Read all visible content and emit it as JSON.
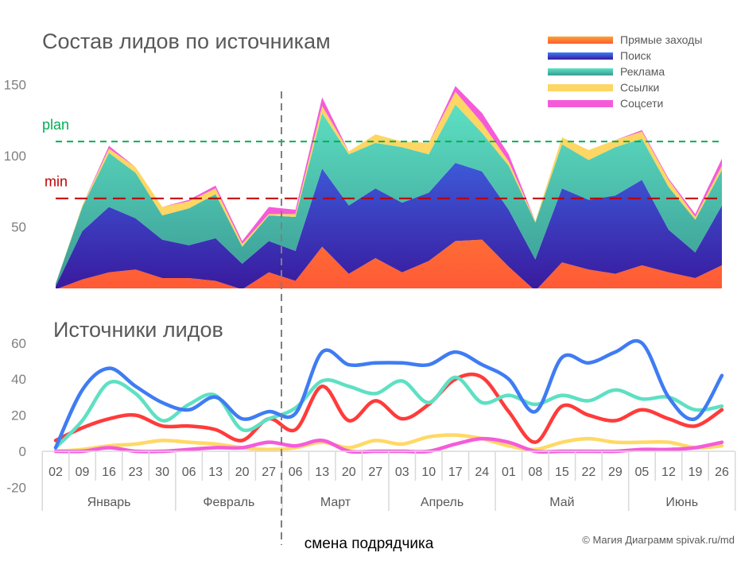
{
  "chart_data": [
    {
      "type": "area",
      "stacked": true,
      "title": "Состав лидов по источникам",
      "yticks": [
        50,
        100,
        150
      ],
      "ylim": [
        7,
        160
      ],
      "legend_position": "top-right",
      "reference_lines": [
        {
          "label": "plan",
          "value": 110,
          "color": "#00b050"
        },
        {
          "label": "min",
          "value": 70,
          "color": "#c00000"
        }
      ]
    },
    {
      "type": "line",
      "title": "Источники лидов",
      "yticks": [
        -20,
        0,
        20,
        40,
        60
      ],
      "ylim": [
        -20,
        65
      ],
      "smooth": true
    }
  ],
  "categories": [
    "02",
    "09",
    "16",
    "23",
    "30",
    "06",
    "13",
    "20",
    "27",
    "06",
    "13",
    "20",
    "27",
    "03",
    "10",
    "17",
    "24",
    "01",
    "08",
    "15",
    "22",
    "29",
    "05",
    "12",
    "19",
    "26"
  ],
  "months": [
    {
      "label": "Январь",
      "weeks": 5
    },
    {
      "label": "Февраль",
      "weeks": 4
    },
    {
      "label": "Март",
      "weeks": 4
    },
    {
      "label": "Апрель",
      "weeks": 4
    },
    {
      "label": "Май",
      "weeks": 5
    },
    {
      "label": "Июнь",
      "weeks": 4
    }
  ],
  "series": [
    {
      "name": "Прямые заходы",
      "color": "#ff3b3b",
      "gradient": [
        "#ff5a36",
        "#fba232"
      ],
      "values": [
        6,
        13,
        18,
        20,
        14,
        14,
        12,
        6,
        18,
        12,
        36,
        17,
        28,
        18,
        26,
        40,
        41,
        22,
        5,
        25,
        20,
        17,
        23,
        18,
        14,
        23
      ]
    },
    {
      "name": "Поиск",
      "color": "#3f7cf3",
      "gradient": [
        "#3a1a9e",
        "#3d7cf6"
      ],
      "values": [
        2,
        34,
        46,
        36,
        27,
        23,
        30,
        18,
        22,
        21,
        55,
        48,
        49,
        49,
        48,
        55,
        48,
        40,
        22,
        52,
        49,
        55,
        60,
        30,
        18,
        42
      ]
    },
    {
      "name": "Реклама",
      "color": "#5ee0c3",
      "gradient": [
        "#3a9a94",
        "#5fe3c4"
      ],
      "values": [
        2,
        17,
        38,
        32,
        17,
        26,
        31,
        12,
        18,
        24,
        39,
        36,
        32,
        39,
        27,
        41,
        27,
        31,
        26,
        31,
        28,
        34,
        29,
        30,
        23,
        25
      ]
    },
    {
      "name": "Ссылки",
      "color": "#ffd966",
      "gradient": [
        "#fdd663",
        "#fdd663"
      ],
      "values": [
        0,
        1,
        3,
        4,
        6,
        5,
        4,
        2,
        1,
        2,
        5,
        2,
        6,
        4,
        8,
        9,
        7,
        3,
        1,
        5,
        7,
        5,
        5,
        5,
        2,
        3
      ]
    },
    {
      "name": "Соцсети",
      "color": "#f55bdb",
      "gradient": [
        "#f55bd9",
        "#f55bd9"
      ],
      "values": [
        0,
        0,
        2,
        0,
        0,
        1,
        2,
        2,
        5,
        3,
        6,
        0,
        0,
        0,
        0,
        4,
        7,
        5,
        0,
        0,
        0,
        0,
        1,
        1,
        2,
        5
      ]
    }
  ],
  "annotation": {
    "label": "смена подрядчика",
    "between": [
      "27",
      "06"
    ]
  },
  "copyright": "© Магия Диаграмм spivak.ru/md"
}
